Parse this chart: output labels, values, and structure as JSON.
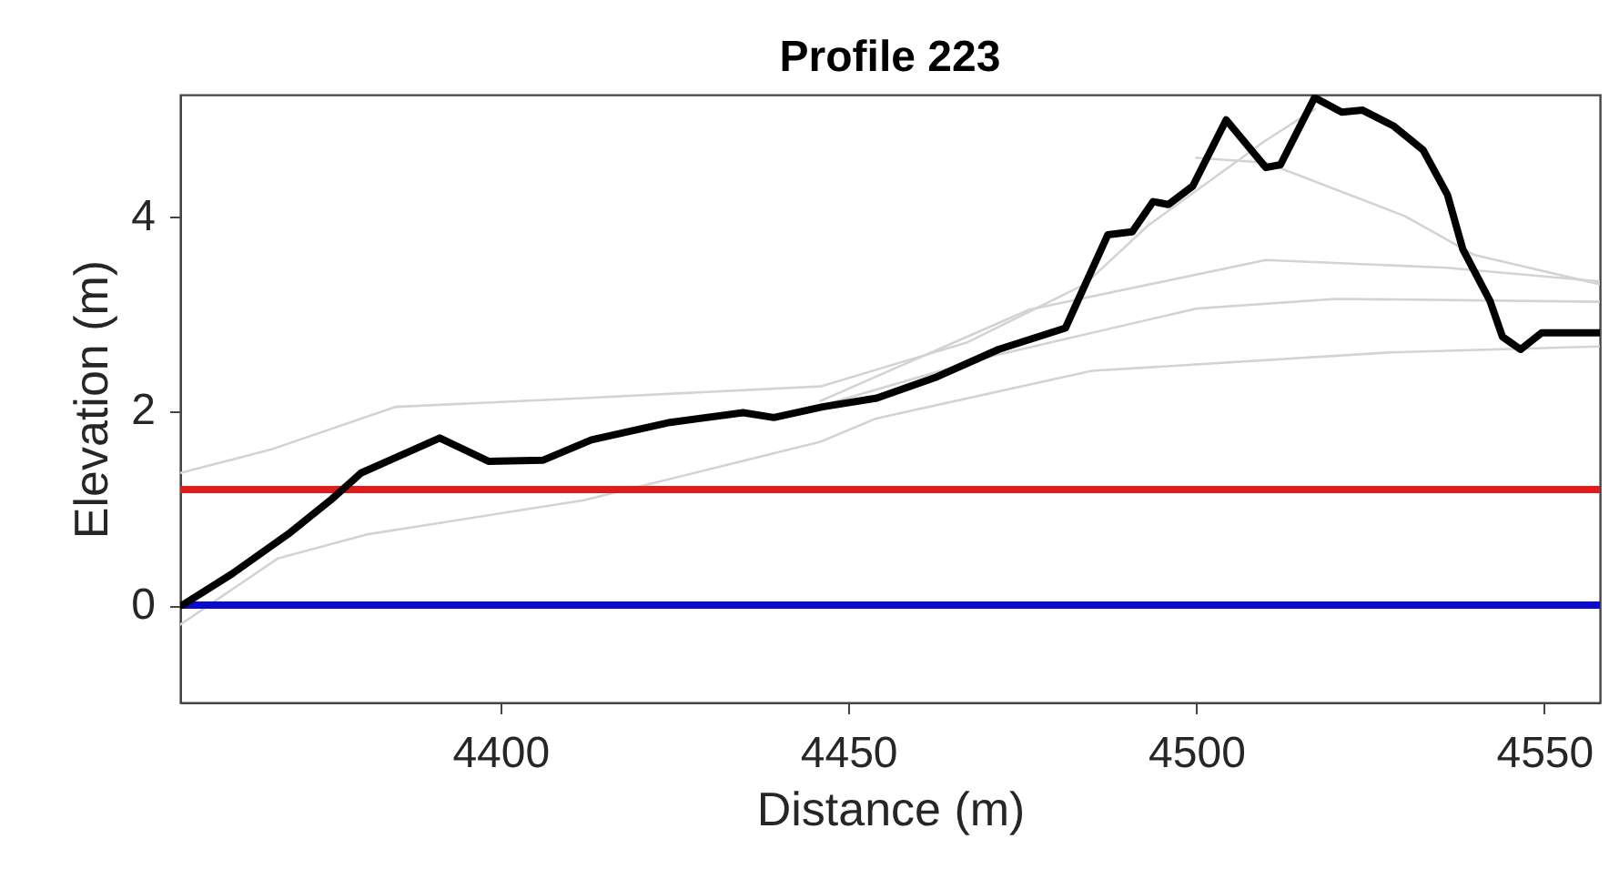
{
  "chart_data": {
    "type": "line",
    "title": "Profile 223",
    "xlabel": "Distance (m)",
    "ylabel": "Elevation (m)",
    "xlim": [
      4354,
      4558
    ],
    "xticks": [
      4400,
      4450,
      4500,
      4550
    ],
    "ylim": [
      -1,
      5.25
    ],
    "yticks": [
      0,
      2,
      4
    ],
    "series": [
      {
        "color": "#d3d3d3",
        "x": [
          4354,
          4367,
          4385,
          4412,
          4446,
          4467,
          4484,
          4493,
          4510,
          4517
        ],
        "values": [
          1.36,
          1.6,
          2.04,
          2.13,
          2.25,
          2.7,
          3.3,
          3.9,
          4.78,
          5.1
        ]
      },
      {
        "color": "#d3d3d3",
        "x": [
          4354,
          4368,
          4381,
          4412,
          4446,
          4454,
          4485,
          4528,
          4558
        ],
        "values": [
          -0.2,
          0.48,
          0.73,
          1.08,
          1.68,
          1.92,
          2.41,
          2.6,
          2.66
        ]
      },
      {
        "color": "#d3d3d3",
        "x": [
          4446,
          4476,
          4510,
          4536,
          4558
        ],
        "values": [
          2.1,
          3.04,
          3.55,
          3.47,
          3.33
        ]
      },
      {
        "color": "#d3d3d3",
        "x": [
          4500,
          4510,
          4530,
          4540,
          4558
        ],
        "values": [
          4.6,
          4.55,
          4.0,
          3.6,
          3.3
        ]
      },
      {
        "color": "#d3d3d3",
        "x": [
          4446,
          4470,
          4500,
          4520,
          4558
        ],
        "values": [
          2.05,
          2.55,
          3.05,
          3.15,
          3.12
        ]
      },
      {
        "color": "#000000",
        "x": [
          4354.3,
          4361.6,
          4369.5,
          4375.6,
          4380,
          4391.3,
          4398.3,
          4406.1,
          4413.1,
          4424.4,
          4434.9,
          4439.3,
          4446.3,
          4454.1,
          4462.8,
          4471.6,
          4481.2,
          4487.3,
          4490.8,
          4493.8,
          4496,
          4499.5,
          4504.3,
          4510,
          4512.1,
          4517,
          4520.9,
          4523.9,
          4528.3,
          4532.6,
          4536.1,
          4538.3,
          4542.2,
          4544,
          4546.6,
          4549.6,
          4558
        ],
        "values": [
          0,
          0.33,
          0.73,
          1.08,
          1.36,
          1.72,
          1.48,
          1.49,
          1.7,
          1.88,
          1.98,
          1.93,
          2.04,
          2.13,
          2.35,
          2.63,
          2.85,
          3.81,
          3.84,
          4.15,
          4.12,
          4.31,
          4.99,
          4.5,
          4.53,
          5.22,
          5.07,
          5.09,
          4.93,
          4.68,
          4.22,
          3.66,
          3.13,
          2.76,
          2.63,
          2.8,
          2.8
        ]
      }
    ],
    "ref_lines": [
      {
        "axis": "y",
        "value": 1.19,
        "color": "#dd1c1c"
      },
      {
        "axis": "y",
        "value": 0,
        "color": "#0a0ad0"
      }
    ]
  }
}
